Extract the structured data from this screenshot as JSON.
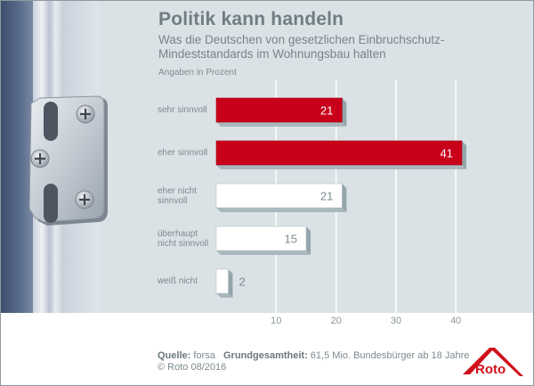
{
  "title": "Politik kann handeln",
  "subtitle_line1": "Was die Deutschen von gesetzlichen Einbruchschutz-",
  "subtitle_line2": "Mindeststandards im Wohnungsbau halten",
  "unit_note": "Angaben in Prozent",
  "footer": {
    "source_label": "Quelle:",
    "source_value": "forsa",
    "population_label": "Grundgesamtheit:",
    "population_value": "61,5 Mio. Bundesbürger ab 18 Jahre",
    "copyright": "© Roto 08/2016"
  },
  "logo": {
    "text": "Roto",
    "color": "#d0101b"
  },
  "colors": {
    "highlight": "#c8001a",
    "neutral": "#ffffff",
    "shadow": "#a9b8bd",
    "panel": "#dbe2e5",
    "grid": "#ffffff"
  },
  "chart_data": {
    "type": "bar",
    "orientation": "horizontal",
    "title": "Politik kann handeln",
    "subtitle": "Was die Deutschen von gesetzlichen Einbruchschutz-Mindeststandards im Wohnungsbau halten",
    "xlabel": "Angaben in Prozent",
    "ylabel": "",
    "categories": [
      [
        "sehr sinnvoll"
      ],
      [
        "eher sinnvoll"
      ],
      [
        "eher nicht",
        "sinnvoll"
      ],
      [
        "überhaupt",
        "nicht sinnvoll"
      ],
      [
        "weiß nicht"
      ]
    ],
    "values": [
      21,
      41,
      21,
      15,
      2
    ],
    "highlighted": [
      true,
      true,
      false,
      false,
      false
    ],
    "xlim": [
      0,
      45
    ],
    "xticks": [
      10,
      20,
      30,
      40
    ],
    "grid": true,
    "legend": "none"
  }
}
